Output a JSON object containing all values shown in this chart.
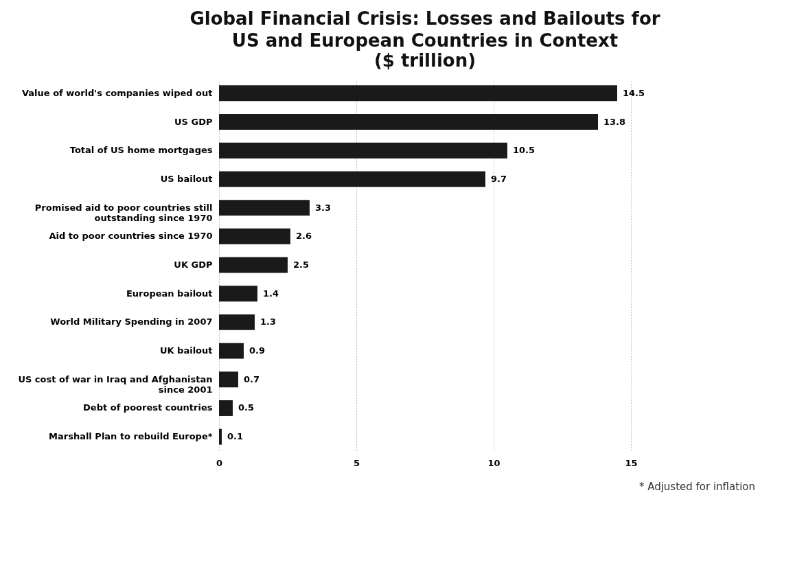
{
  "chart_data": {
    "type": "bar",
    "orientation": "horizontal",
    "title": "Global Financial Crisis: Losses and Bailouts for US and European Countries in Context",
    "subtitle": "($ trillion)",
    "categories": [
      "Value of world's companies wiped out",
      "US GDP",
      "Total of US home mortgages",
      "US bailout",
      "Promised aid to poor countries still outstanding since 1970",
      "Aid to poor countries since 1970",
      "UK GDP",
      "European bailout",
      "World Military Spending in 2007",
      "UK bailout",
      "US cost of war in Iraq and Afghanistan since 2001",
      "Debt of poorest countries",
      "Marshall Plan to rebuild Europe*"
    ],
    "values": [
      14.5,
      13.8,
      10.5,
      9.7,
      3.3,
      2.6,
      2.5,
      1.4,
      1.3,
      0.9,
      0.7,
      0.5,
      0.1
    ],
    "color": "#1a1a1a",
    "xlim": [
      0,
      15
    ],
    "xticks": [
      0,
      5,
      10,
      15
    ],
    "grid": "x",
    "data_labels": true,
    "annotations": [
      "* Adjusted for inflation"
    ]
  }
}
